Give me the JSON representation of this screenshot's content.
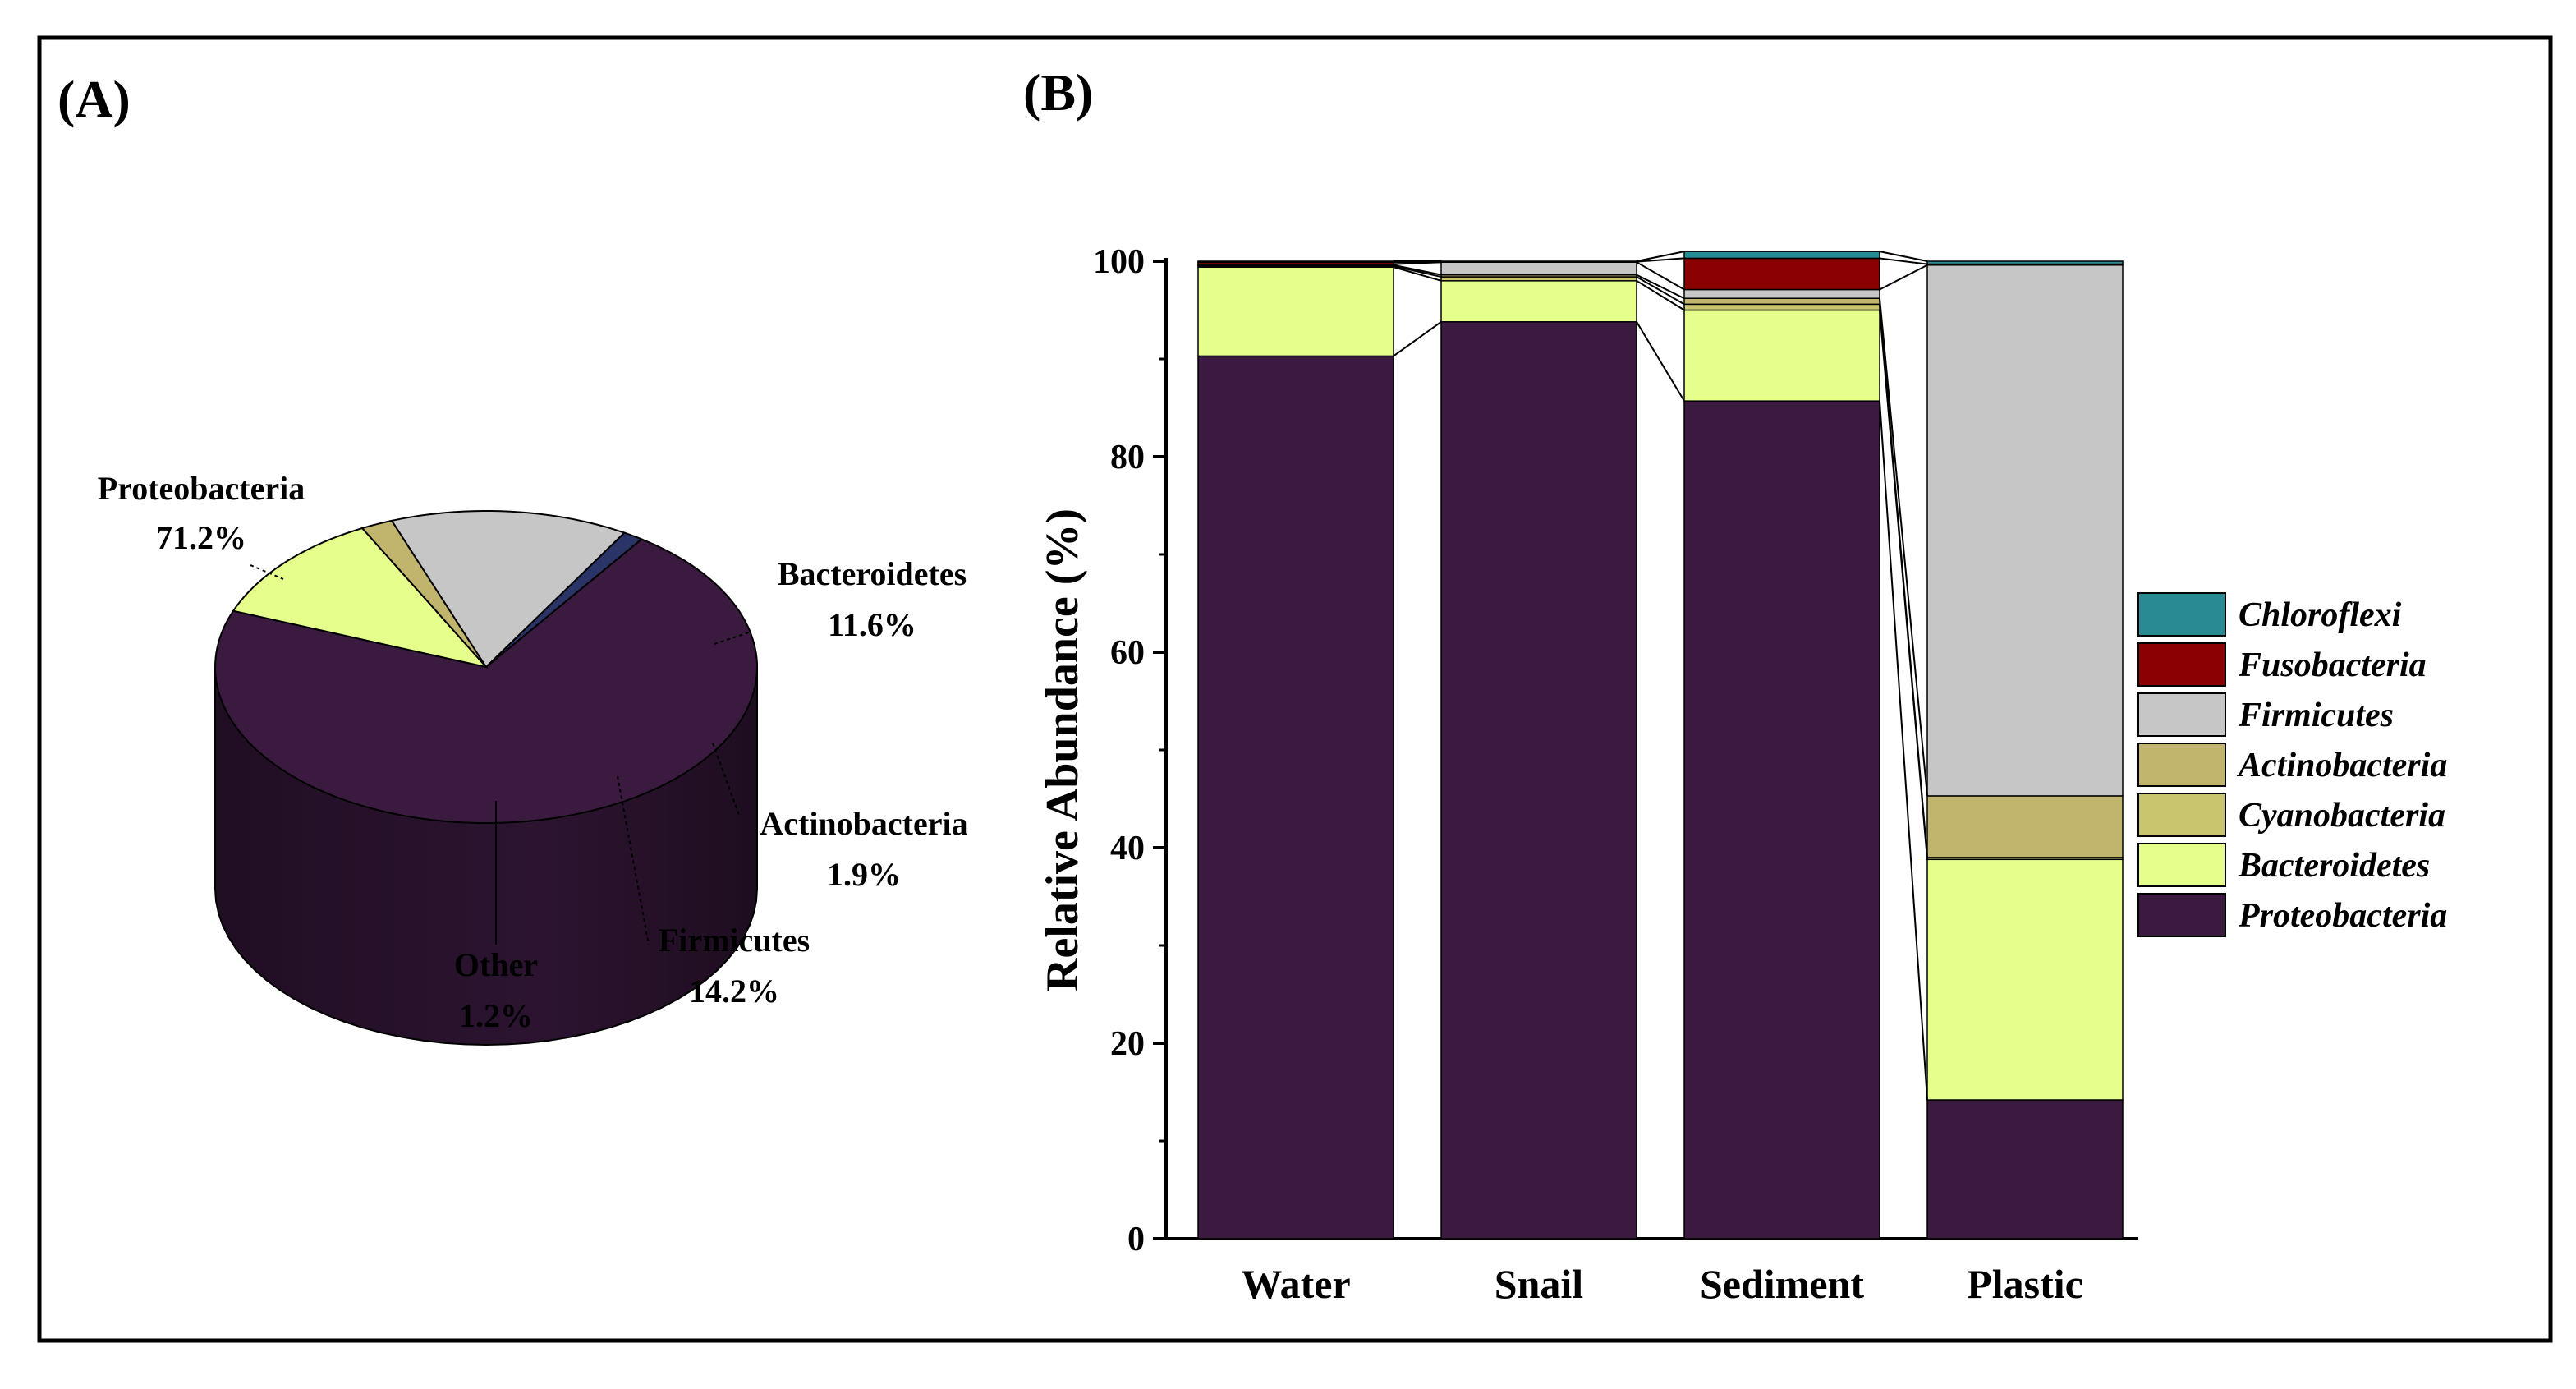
{
  "panel_labels": {
    "a": "(A)",
    "b": "(B)"
  },
  "colors": {
    "Proteobacteria": "#3b1a40",
    "Bacteroidetes": "#e6ff8c",
    "Cyanobacteria": "#c9c56e",
    "Actinobacteria": "#c1b46c",
    "Firmicutes": "#c6c6c6",
    "Fusobacteria": "#8b0000",
    "Chloroflexi": "#2a8a94",
    "Other": "#2b3466"
  },
  "chart_data": [
    {
      "type": "pie",
      "title": "",
      "slices": [
        {
          "name": "Proteobacteria",
          "label": "Proteobacteria",
          "value_label": "71.2%",
          "value": 71.2
        },
        {
          "name": "Bacteroidetes",
          "label": "Bacteroidetes",
          "value_label": "11.6%",
          "value": 11.6
        },
        {
          "name": "Actinobacteria",
          "label": "Actinobacteria",
          "value_label": "1.9%",
          "value": 1.9
        },
        {
          "name": "Firmicutes",
          "label": "Firmicutes",
          "value_label": "14.2%",
          "value": 14.2
        },
        {
          "name": "Other",
          "label": "Other",
          "value_label": "1.2%",
          "value": 1.2
        }
      ]
    },
    {
      "type": "bar",
      "stacked": true,
      "title": "",
      "xlabel": "",
      "ylabel": "Relative Abundance (%)",
      "ylim": [
        0,
        100
      ],
      "yticks": [
        "0",
        "20",
        "40",
        "60",
        "80",
        "100"
      ],
      "categories": [
        "Water",
        "Snail",
        "Sediment",
        "Plastic"
      ],
      "series": [
        {
          "name": "Proteobacteria",
          "values": [
            90.3,
            93.8,
            85.7,
            14.2
          ]
        },
        {
          "name": "Bacteroidetes",
          "values": [
            9.1,
            4.2,
            9.3,
            24.6
          ]
        },
        {
          "name": "Cyanobacteria",
          "values": [
            0.1,
            0.4,
            0.6,
            0.2
          ]
        },
        {
          "name": "Actinobacteria",
          "values": [
            0.1,
            0.2,
            0.6,
            6.3
          ]
        },
        {
          "name": "Firmicutes",
          "values": [
            0.1,
            1.3,
            0.9,
            54.3
          ]
        },
        {
          "name": "Fusobacteria",
          "values": [
            0.2,
            0.05,
            3.2,
            0.1
          ]
        },
        {
          "name": "Chloroflexi",
          "values": [
            0.1,
            0.05,
            0.7,
            0.3
          ]
        }
      ],
      "legend": {
        "placement": "right",
        "entries": [
          "Chloroflexi",
          "Fusobacteria",
          "Firmicutes",
          "Actinobacteria",
          "Cyanobacteria",
          "Bacteroidetes",
          "Proteobacteria"
        ]
      }
    }
  ]
}
